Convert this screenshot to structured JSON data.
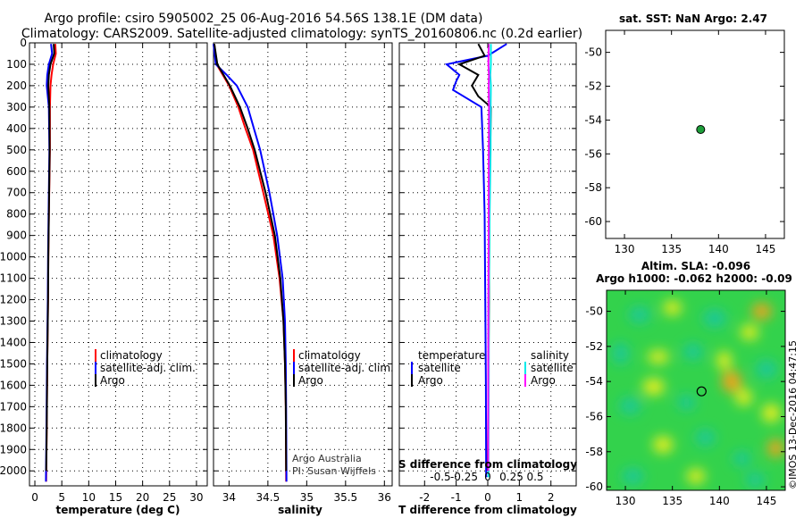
{
  "chart_data": [
    {
      "type": "header",
      "title_line1": "Argo profile: csiro 5905002_25 06-Aug-2016 54.56S 138.1E (DM data)",
      "title_line2": "Climatology: CARS2009. Satellite-adjusted climatology: synTS_20160806.nc (0.2d earlier)"
    },
    {
      "type": "line",
      "panel": "temperature",
      "xlabel": "temperature (deg C)",
      "ylabel": "",
      "xlim": [
        -1,
        32
      ],
      "ylim": [
        2070,
        0
      ],
      "xticks": [
        0,
        5,
        10,
        15,
        20,
        25,
        30
      ],
      "yticks": [
        0,
        100,
        200,
        300,
        400,
        500,
        600,
        700,
        800,
        900,
        1000,
        1100,
        1200,
        1300,
        1400,
        1500,
        1600,
        1700,
        1800,
        1900,
        2000
      ],
      "legend": [
        "climatology",
        "satellite-adj. clim.",
        "Argo"
      ],
      "series": [
        {
          "name": "climatology",
          "color": "#ff0000",
          "depth": [
            5,
            50,
            100,
            150,
            200,
            300,
            500,
            800,
            1000,
            1200,
            1500,
            1800,
            2050
          ],
          "values": [
            3.8,
            3.9,
            3.4,
            3.1,
            2.9,
            2.8,
            2.8,
            2.6,
            2.5,
            2.45,
            2.3,
            2.2,
            2.1
          ]
        },
        {
          "name": "satellite-adj. clim.",
          "color": "#0000ff",
          "depth": [
            5,
            50,
            100,
            150,
            200,
            300,
            500,
            800,
            1000,
            1200,
            1500,
            1800,
            2050
          ],
          "values": [
            3.0,
            3.2,
            2.6,
            2.3,
            2.2,
            2.6,
            2.7,
            2.55,
            2.45,
            2.4,
            2.25,
            2.15,
            2.05
          ]
        },
        {
          "name": "Argo",
          "color": "#000000",
          "depth": [
            5,
            50,
            100,
            150,
            200,
            300,
            500,
            800,
            1000,
            1200,
            1500,
            1800,
            2000
          ],
          "values": [
            3.5,
            3.6,
            2.9,
            2.6,
            2.5,
            2.7,
            2.75,
            2.6,
            2.5,
            2.45,
            2.3,
            2.2,
            2.1
          ]
        }
      ]
    },
    {
      "type": "line",
      "panel": "salinity",
      "xlabel": "salinity",
      "ylabel": "",
      "xlim": [
        33.8,
        36.1
      ],
      "ylim": [
        2070,
        0
      ],
      "xticks": [
        34,
        34.5,
        35,
        35.5,
        36
      ],
      "xticklabels": [
        "34",
        "34.5",
        "35",
        "35.5",
        "36"
      ],
      "legend": [
        "climatology",
        "satellite-adj. clim.",
        "Argo"
      ],
      "note_line1": "Argo Australia",
      "note_line2": "PI: Susan Wijffels",
      "series": [
        {
          "name": "climatology",
          "color": "#ff0000",
          "depth": [
            5,
            100,
            150,
            200,
            300,
            400,
            500,
            700,
            900,
            1100,
            1300,
            1500,
            1700,
            2050
          ],
          "values": [
            33.81,
            33.84,
            33.92,
            34.0,
            34.12,
            34.21,
            34.31,
            34.44,
            34.57,
            34.65,
            34.7,
            34.72,
            34.73,
            34.735
          ]
        },
        {
          "name": "satellite-adj. clim.",
          "color": "#0000ff",
          "depth": [
            5,
            100,
            150,
            200,
            300,
            400,
            500,
            700,
            900,
            1100,
            1300,
            1500,
            1700,
            2050
          ],
          "values": [
            33.8,
            33.83,
            33.97,
            34.1,
            34.24,
            34.32,
            34.4,
            34.52,
            34.62,
            34.69,
            34.72,
            34.73,
            34.735,
            34.74
          ]
        },
        {
          "name": "Argo",
          "color": "#000000",
          "depth": [
            5,
            100,
            150,
            200,
            300,
            400,
            500,
            700,
            900,
            1100,
            1300,
            1500,
            1700,
            2000
          ],
          "values": [
            33.81,
            33.85,
            33.93,
            34.01,
            34.14,
            34.24,
            34.33,
            34.47,
            34.59,
            34.66,
            34.7,
            34.72,
            34.73,
            34.735
          ]
        }
      ]
    },
    {
      "type": "line",
      "panel": "difference",
      "xlabel": "T difference from climatology",
      "xlabel_top": "S difference from climatology",
      "xlim": [
        -2.8,
        2.8
      ],
      "ylim": [
        2070,
        0
      ],
      "xticks": [
        -2,
        -1,
        0,
        1,
        2
      ],
      "xticklabels": [
        "-2",
        "-1",
        "0",
        "1",
        "2"
      ],
      "s_ticklabels": [
        "-0.5",
        "-0.25",
        "0",
        "0.25",
        "0.5"
      ],
      "legend_temperature_title": "temperature",
      "legend_salinity_title": "salinity",
      "legend_temperature": [
        "satellite",
        "Argo"
      ],
      "legend_salinity": [
        "satellite",
        "Argo"
      ],
      "series": [
        {
          "name": "temperature satellite",
          "color": "#0000ff",
          "depth": [
            5,
            60,
            100,
            150,
            180,
            220,
            300,
            500,
            800,
            1200,
            1600,
            2030
          ],
          "values": [
            0.6,
            0.0,
            -1.3,
            -0.9,
            -1.0,
            -1.1,
            -0.2,
            -0.15,
            -0.1,
            -0.08,
            -0.06,
            -0.05
          ]
        },
        {
          "name": "temperature Argo",
          "color": "#000000",
          "depth": [
            5,
            60,
            100,
            150,
            200,
            250,
            300,
            500,
            800,
            1200,
            1600,
            2000
          ],
          "values": [
            -0.3,
            -0.1,
            -0.9,
            -0.3,
            -0.5,
            -0.3,
            0.1,
            0.08,
            0.05,
            0.04,
            0.02,
            0.0
          ]
        },
        {
          "name": "salinity satellite",
          "color": "#00eaea",
          "depth": [
            5,
            100,
            150,
            200,
            300,
            500,
            800,
            1200,
            1600,
            2030
          ],
          "values": [
            0.1,
            0.1,
            0.08,
            0.1,
            0.09,
            0.09,
            0.06,
            0.035,
            0.03,
            0.02
          ]
        },
        {
          "name": "salinity Argo",
          "color": "#ff00ff",
          "depth": [
            5,
            100,
            150,
            200,
            300,
            500,
            800,
            1200,
            1600,
            2000
          ],
          "values": [
            0.03,
            0.02,
            0.04,
            0.03,
            0.04,
            0.035,
            0.03,
            0.02,
            0.015,
            0.01
          ]
        }
      ]
    },
    {
      "type": "scatter",
      "panel": "sst-map",
      "title": "sat. SST: NaN Argo: 2.47",
      "xlim": [
        128,
        147
      ],
      "ylim": [
        -61,
        -48.7
      ],
      "xticks": [
        130,
        135,
        140,
        145
      ],
      "yticks": [
        -50,
        -52,
        -54,
        -56,
        -58,
        -60
      ],
      "point": {
        "lon": 138.1,
        "lat": -54.56,
        "color": "#1e9e3a"
      }
    },
    {
      "type": "heatmap",
      "panel": "sla-map",
      "title_line1": "Altim. SLA: -0.096",
      "title_line2": "Argo h1000: -0.062 h2000: -0.09",
      "xlim": [
        128,
        147
      ],
      "ylim": [
        -60.2,
        -48.8
      ],
      "xticks": [
        130,
        135,
        140,
        145
      ],
      "yticks": [
        -50,
        -52,
        -54,
        -56,
        -58,
        -60
      ],
      "point": {
        "lon": 138.1,
        "lat": -54.56
      },
      "colors": {
        "base": "#33d24c",
        "high_yellow": "#f4f01c",
        "high_orange": "#f6a21a",
        "low_cyan": "#1ec89a"
      },
      "watermark": "©IMOS 13-Dec-2016 04:47:15"
    }
  ]
}
